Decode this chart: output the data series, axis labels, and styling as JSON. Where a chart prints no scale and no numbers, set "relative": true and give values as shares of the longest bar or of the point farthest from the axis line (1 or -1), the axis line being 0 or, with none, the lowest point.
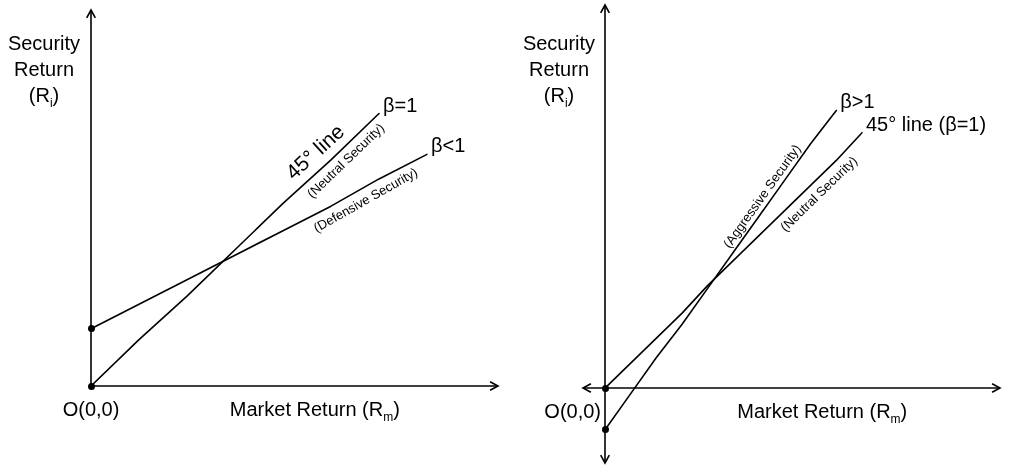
{
  "chart_data": [
    {
      "type": "line",
      "relative": true,
      "xlabel": "Market Return (R$_{m}$)",
      "ylabel": "Security\nReturn\n(R$_{i}$)",
      "line_style": "solid",
      "legend": false,
      "categories": [
        null,
        null,
        null,
        null,
        null,
        null,
        null,
        null
      ],
      "series": [
        {
          "name": "β=1",
          "color": "#000000",
          "values": [
            0,
            0.17,
            0.33,
            0.5,
            0.67,
            0.83,
            1,
            null
          ]
        },
        {
          "name": "β<1",
          "color": "#000000",
          "values": [
            0.21,
            0.3,
            0.39,
            0.48,
            0.57,
            0.66,
            0.76,
            0.85
          ]
        }
      ],
      "annotations": [
        "O(0,0)",
        "45° line",
        "(Neutral Security)",
        "(Defensive Security)"
      ]
    },
    {
      "type": "line",
      "relative": true,
      "xlabel": "Market Return (R$_{m}$)",
      "ylabel": "Security\nReturn\n(R$_{i}$)",
      "line_style": "solid",
      "legend": false,
      "categories": [
        null,
        null,
        null,
        null,
        null,
        null,
        null,
        null,
        null,
        null,
        null
      ],
      "series": [
        {
          "name": "β>1",
          "color": "#000000",
          "values": [
            -0.15,
            -0.02,
            0.11,
            0.23,
            0.36,
            0.49,
            0.62,
            0.75,
            0.88,
            1,
            null
          ]
        },
        {
          "name": "45° line (β=1)",
          "color": "#000000",
          "values": [
            0,
            0.09,
            0.18,
            0.27,
            0.37,
            0.46,
            0.55,
            0.64,
            0.73,
            0.82,
            0.92
          ]
        }
      ],
      "annotations": [
        "O(0,0)",
        "(Aggressive Security)",
        "(Neutral Security)"
      ]
    }
  ]
}
